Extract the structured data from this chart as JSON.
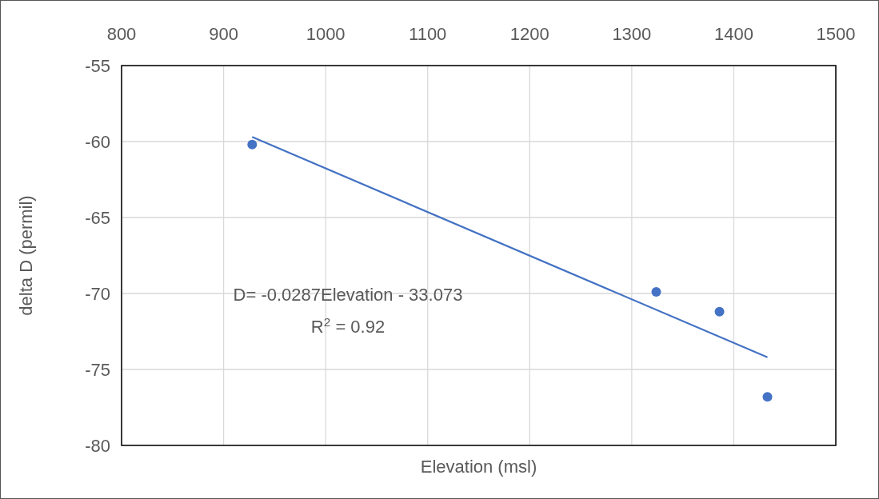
{
  "chart_data": {
    "type": "scatter",
    "xlabel": "Elevation (msl)",
    "ylabel": "delta D (permil)",
    "xlim": [
      800,
      1500
    ],
    "xticks": [
      800,
      900,
      1000,
      1100,
      1200,
      1300,
      1400,
      1500
    ],
    "ylim": [
      -80,
      -55
    ],
    "yticks": [
      -80,
      -75,
      -70,
      -65,
      -60,
      -55
    ],
    "grid": true,
    "marker": "circle",
    "series": [
      {
        "color": "#4472c4",
        "x": [
          928,
          1324,
          1386,
          1433
        ],
        "values": [
          -60.2,
          -69.9,
          -71.2,
          -76.8
        ]
      },
      {
        "type": "line",
        "color": "#4472c4",
        "x": [
          928,
          1433
        ],
        "values": [
          -59.7,
          -74.2
        ],
        "marker": "none"
      }
    ],
    "annotations": [
      "D= -0.0287Elevation - 33.073",
      "R$^{2}$ = 0.92"
    ]
  }
}
